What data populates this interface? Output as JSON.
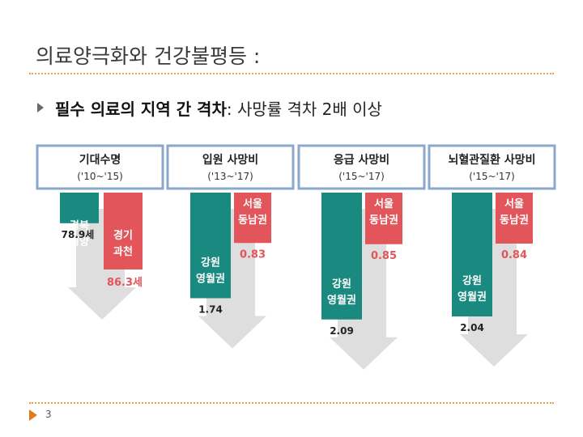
{
  "slide": {
    "title": "의료양극화와 건강불평등 :",
    "bullet_strong": "필수 의료의 지역 간 격차",
    "bullet_rest": " : 사망률 격차 2배  이상",
    "page_number": "3"
  },
  "colors": {
    "teal": "#1a8a80",
    "red": "#e2555a",
    "border": "#8aa7cc",
    "arrow": "#d8d8d8"
  },
  "chart_data": [
    {
      "type": "bar",
      "title": "기대수명",
      "subtitle": "('10~'15)",
      "categories": [
        "경북 영양",
        "경기 과천"
      ],
      "values": [
        78.9,
        86.3
      ],
      "value_labels": [
        "78.9세",
        "86.3세"
      ],
      "colors": [
        "#1a8a80",
        "#e2555a"
      ]
    },
    {
      "type": "bar",
      "title": "입원 사망비",
      "subtitle": "('13~'17)",
      "categories": [
        "강원 영월권",
        "서울 동남권"
      ],
      "values": [
        1.74,
        0.83
      ],
      "value_labels": [
        "1.74",
        "0.83"
      ],
      "colors": [
        "#1a8a80",
        "#e2555a"
      ]
    },
    {
      "type": "bar",
      "title": "응급 사망비",
      "subtitle": "('15~'17)",
      "categories": [
        "강원 영월권",
        "서울 동남권"
      ],
      "values": [
        2.09,
        0.85
      ],
      "value_labels": [
        "2.09",
        "0.85"
      ],
      "colors": [
        "#1a8a80",
        "#e2555a"
      ]
    },
    {
      "type": "bar",
      "title": "뇌혈관질환 사망비",
      "subtitle": "('15~'17)",
      "categories": [
        "강원 영월권",
        "서울 동남권"
      ],
      "values": [
        2.04,
        0.84
      ],
      "value_labels": [
        "2.04",
        "0.84"
      ],
      "colors": [
        "#1a8a80",
        "#e2555a"
      ]
    }
  ]
}
